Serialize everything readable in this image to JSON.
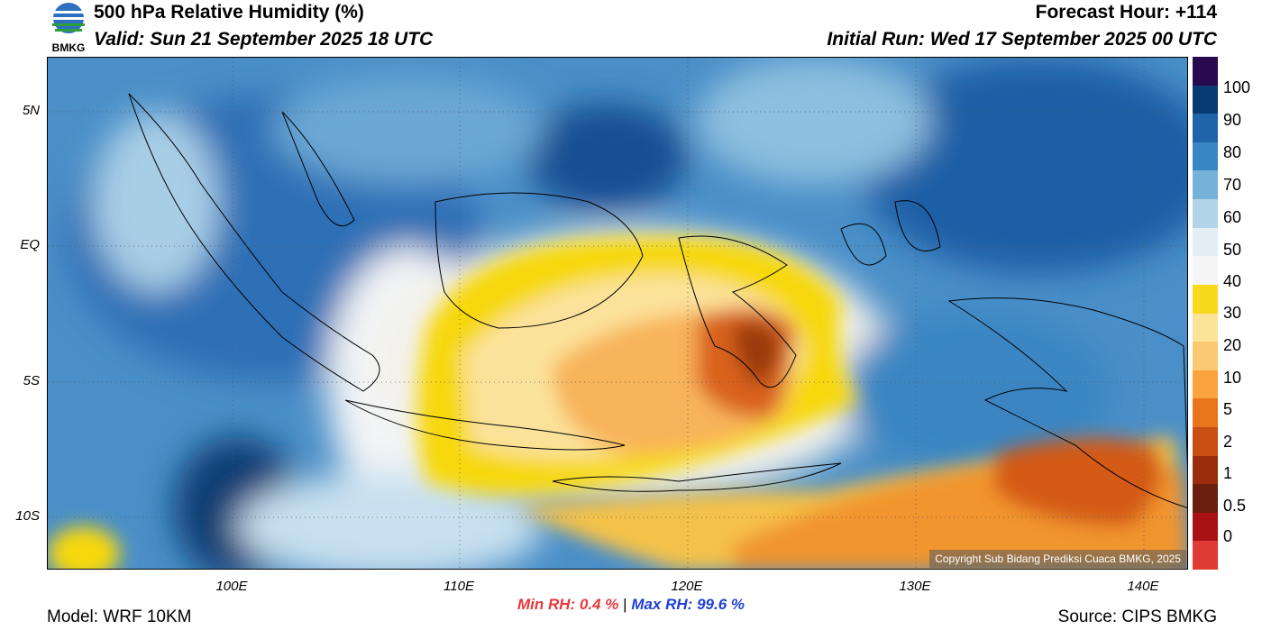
{
  "header": {
    "title": "500 hPa Relative Humidity (%)",
    "valid": "Valid: Sun 21 September 2025 18 UTC",
    "forecast_hour": "Forecast Hour: +114",
    "initial_run": "Initial Run: Wed 17 September 2025 00 UTC",
    "logo_text": "BMKG"
  },
  "map": {
    "lat_labels": [
      "5N",
      "EQ",
      "5S",
      "10S"
    ],
    "lon_labels": [
      "100E",
      "110E",
      "120E",
      "130E",
      "140E"
    ],
    "copyright": "Copyright Sub Bidang Prediksi Cuaca BMKG, 2025"
  },
  "colorbar": {
    "labels": [
      "100",
      "90",
      "80",
      "70",
      "60",
      "50",
      "40",
      "30",
      "20",
      "10",
      "5",
      "2",
      "1",
      "0.5",
      "0"
    ],
    "colors": [
      "#2a0a4e",
      "#0a3a73",
      "#1f63a8",
      "#3a86c2",
      "#76b1d8",
      "#b2d4e8",
      "#e3eef5",
      "#f5f5f5",
      "#f7da1e",
      "#fbe497",
      "#fbc874",
      "#f9a23e",
      "#e8741c",
      "#c84e12",
      "#9a2e0c",
      "#6a1e0e",
      "#a81215",
      "#e03a34"
    ]
  },
  "stats": {
    "min_label": "Min RH:",
    "min_value": "0.4 %",
    "separator": "|",
    "max_label": "Max RH:",
    "max_value": "99.6 %"
  },
  "footer": {
    "model": "Model: WRF 10KM",
    "source": "Source: CIPS BMKG"
  }
}
